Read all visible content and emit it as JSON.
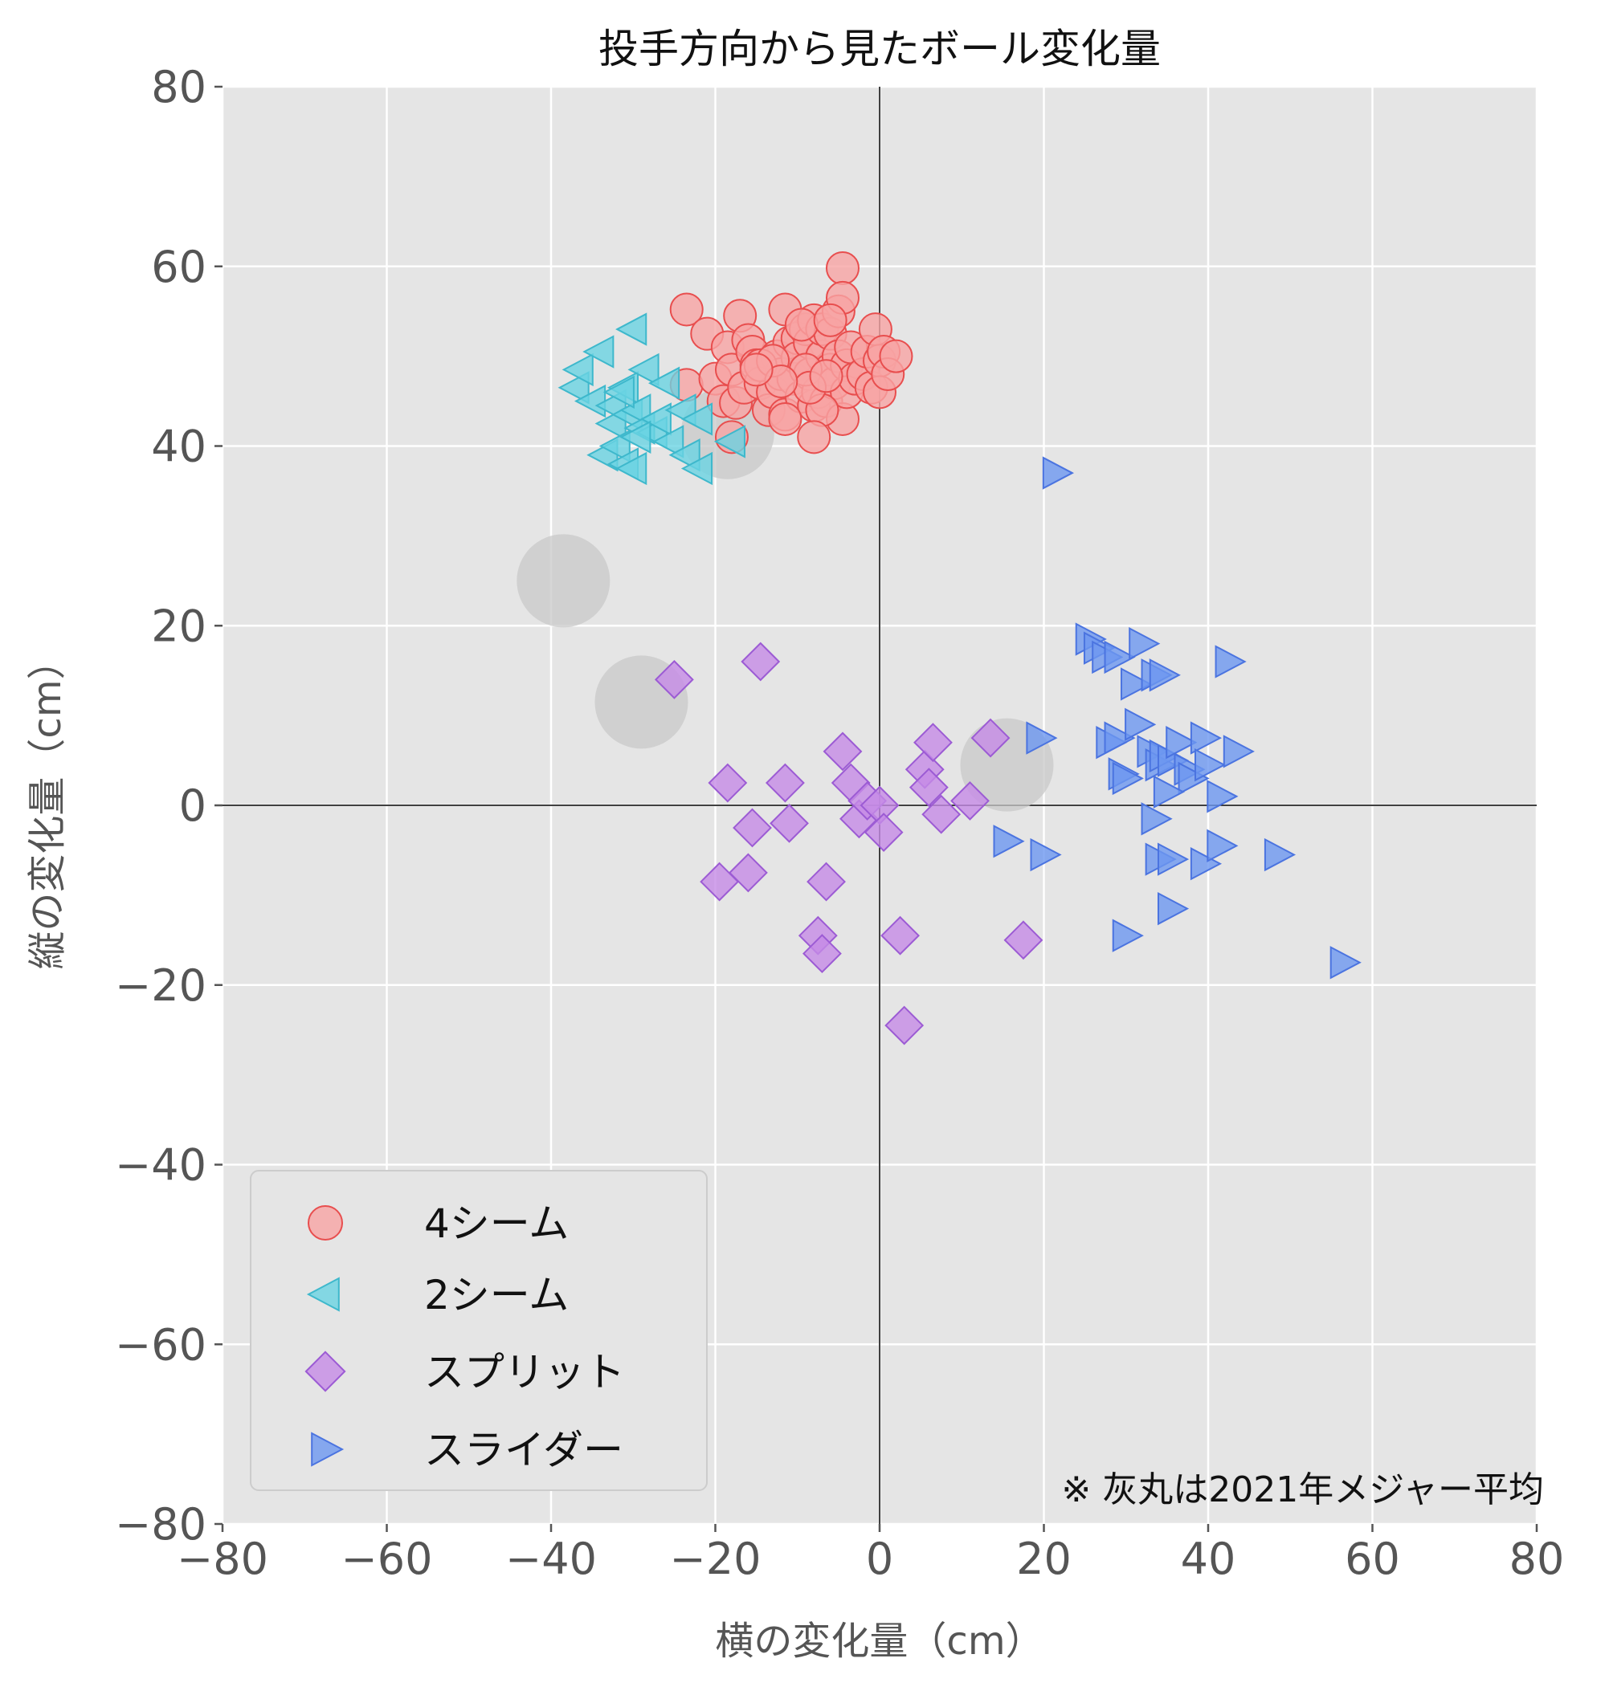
{
  "chart_data": {
    "type": "scatter",
    "title": "投手方向から見たボール変化量",
    "xlabel": "横の変化量（cm）",
    "ylabel": "縦の変化量（cm）",
    "xlim": [
      -80,
      80
    ],
    "ylim": [
      -80,
      80
    ],
    "xticks": [
      "−80",
      "−60",
      "−40",
      "−20",
      "0",
      "20",
      "40",
      "60",
      "80"
    ],
    "yticks": [
      "80",
      "60",
      "40",
      "20",
      "0",
      "−20",
      "−40",
      "−60",
      "−80"
    ],
    "grid": true,
    "legend_position": "bottom-left",
    "annotation": "※ 灰丸は2021年メジャー平均",
    "league_average_color": "#c8c8c8",
    "league_average": [
      {
        "x": -18.5,
        "y": 41.5
      },
      {
        "x": -38.5,
        "y": 25.0
      },
      {
        "x": -29.0,
        "y": 11.5
      },
      {
        "x": 15.5,
        "y": 4.5
      }
    ],
    "series": [
      {
        "name": "4シーム",
        "marker": "circle",
        "fill": "#f8a4a4",
        "stroke": "#e84e4e",
        "points": [
          [
            -23.5,
            55.2
          ],
          [
            -23.5,
            46.8
          ],
          [
            -21,
            52.5
          ],
          [
            -20,
            47.5
          ],
          [
            -19,
            45
          ],
          [
            -18.5,
            51
          ],
          [
            -18,
            48.5
          ],
          [
            -17.5,
            44.8
          ],
          [
            -17,
            54.5
          ],
          [
            -16.5,
            46.5
          ],
          [
            -16,
            51.8
          ],
          [
            -15.5,
            50.5
          ],
          [
            -15,
            49
          ],
          [
            -14.5,
            47
          ],
          [
            -13.5,
            44
          ],
          [
            -13,
            46
          ],
          [
            -12.5,
            50
          ],
          [
            -12,
            48
          ],
          [
            -11.5,
            55.2
          ],
          [
            -11.5,
            43.5
          ],
          [
            -11,
            51.5
          ],
          [
            -10.5,
            47.5
          ],
          [
            -10,
            52
          ],
          [
            -10,
            49.8
          ],
          [
            -9.5,
            45.5
          ],
          [
            -9,
            53
          ],
          [
            -8.5,
            48
          ],
          [
            -8.5,
            51.5
          ],
          [
            -8,
            54
          ],
          [
            -8,
            44.5
          ],
          [
            -7.5,
            46
          ],
          [
            -7,
            50
          ],
          [
            -7,
            53
          ],
          [
            -6.5,
            45
          ],
          [
            -6,
            48.5
          ],
          [
            -6,
            52.5
          ],
          [
            -5.5,
            47
          ],
          [
            -5,
            55
          ],
          [
            -5,
            50
          ],
          [
            -4.5,
            59.8
          ],
          [
            -4.5,
            56.5
          ],
          [
            -4.5,
            43
          ],
          [
            -4,
            49
          ],
          [
            -4,
            46
          ],
          [
            -3.5,
            51
          ],
          [
            -3,
            47.5
          ],
          [
            -2,
            48
          ],
          [
            -1.5,
            50.5
          ],
          [
            -1,
            46.5
          ],
          [
            -0.5,
            53
          ],
          [
            0,
            49.5
          ],
          [
            0,
            46
          ],
          [
            0.5,
            50.5
          ],
          [
            1,
            48
          ],
          [
            2,
            50
          ],
          [
            -18,
            41
          ],
          [
            -14.5,
            49
          ],
          [
            -13,
            49.5
          ],
          [
            -9.5,
            53.5
          ],
          [
            -9,
            48.5
          ],
          [
            -7,
            44
          ],
          [
            -6,
            54
          ],
          [
            -11.5,
            43
          ],
          [
            -8.5,
            46.5
          ],
          [
            -6.5,
            47.8
          ],
          [
            -8,
            41
          ],
          [
            -12,
            47.2
          ],
          [
            -15,
            48.5
          ]
        ]
      },
      {
        "name": "2シーム",
        "marker": "triangle-left",
        "fill": "#6ad3e2",
        "stroke": "#3eb8cc",
        "points": [
          [
            -37,
            46.5
          ],
          [
            -36.5,
            48.5
          ],
          [
            -35,
            45
          ],
          [
            -34,
            50.5
          ],
          [
            -33.5,
            39
          ],
          [
            -32.5,
            42.5
          ],
          [
            -32.5,
            44.5
          ],
          [
            -32,
            40
          ],
          [
            -31,
            46.5
          ],
          [
            -31,
            38
          ],
          [
            -30.5,
            43.5
          ],
          [
            -30,
            53
          ],
          [
            -30,
            37.5
          ],
          [
            -29.5,
            44
          ],
          [
            -29,
            42
          ],
          [
            -28.5,
            48.5
          ],
          [
            -27.5,
            41.5
          ],
          [
            -27,
            43
          ],
          [
            -26,
            47
          ],
          [
            -25.5,
            40.5
          ],
          [
            -24,
            44
          ],
          [
            -23.5,
            39
          ],
          [
            -22,
            43
          ],
          [
            -22,
            37.5
          ],
          [
            -18,
            40.5
          ],
          [
            -31.5,
            46
          ],
          [
            -29.5,
            41
          ]
        ]
      },
      {
        "name": "スプリット",
        "marker": "diamond",
        "fill": "#c58be6",
        "stroke": "#9c5bd4",
        "points": [
          [
            -25,
            14
          ],
          [
            -14.5,
            16
          ],
          [
            -18.5,
            2.5
          ],
          [
            -15.5,
            -2.5
          ],
          [
            -16,
            -7.5
          ],
          [
            -19.5,
            -8.5
          ],
          [
            -11.5,
            2.5
          ],
          [
            -11,
            -2
          ],
          [
            -7.5,
            -14.5
          ],
          [
            -7,
            -16.5
          ],
          [
            -6.5,
            -8.5
          ],
          [
            -4.5,
            6
          ],
          [
            -3.5,
            2.5
          ],
          [
            -2.5,
            -1.5
          ],
          [
            -1.5,
            0.5
          ],
          [
            0,
            0
          ],
          [
            0.5,
            -3
          ],
          [
            2.5,
            -14.5
          ],
          [
            3,
            -24.5
          ],
          [
            5.5,
            4
          ],
          [
            6,
            2
          ],
          [
            6.5,
            7
          ],
          [
            7.5,
            -1
          ],
          [
            11,
            0.5
          ],
          [
            13.5,
            7.5
          ],
          [
            17.5,
            -15
          ]
        ]
      },
      {
        "name": "スライダー",
        "marker": "triangle-right",
        "fill": "#6d97f0",
        "stroke": "#4b74e0",
        "points": [
          [
            21.5,
            37
          ],
          [
            25.5,
            18.5
          ],
          [
            26.5,
            17.5
          ],
          [
            27.5,
            16.5
          ],
          [
            29,
            16.5
          ],
          [
            31,
            13.5
          ],
          [
            32,
            18
          ],
          [
            33.5,
            14.5
          ],
          [
            34.5,
            14.5
          ],
          [
            42.5,
            16
          ],
          [
            19.5,
            7.5
          ],
          [
            28,
            7
          ],
          [
            29,
            7.5
          ],
          [
            29.5,
            3.5
          ],
          [
            30,
            3
          ],
          [
            31.5,
            9
          ],
          [
            33,
            6
          ],
          [
            34,
            4.5
          ],
          [
            34.5,
            5.5
          ],
          [
            35.5,
            5
          ],
          [
            36.5,
            7
          ],
          [
            37.5,
            4
          ],
          [
            38,
            3
          ],
          [
            39.5,
            7.5
          ],
          [
            40,
            4.5
          ],
          [
            41.5,
            1
          ],
          [
            43.5,
            6
          ],
          [
            35,
            1.5
          ],
          [
            33.5,
            -1.5
          ],
          [
            15.5,
            -4
          ],
          [
            20,
            -5.5
          ],
          [
            34,
            -6
          ],
          [
            35.5,
            -6
          ],
          [
            39.5,
            -6.5
          ],
          [
            41.5,
            -4.5
          ],
          [
            48.5,
            -5.5
          ],
          [
            35.5,
            -11.5
          ],
          [
            30,
            -14.5
          ],
          [
            56.5,
            -17.5
          ]
        ]
      }
    ]
  }
}
